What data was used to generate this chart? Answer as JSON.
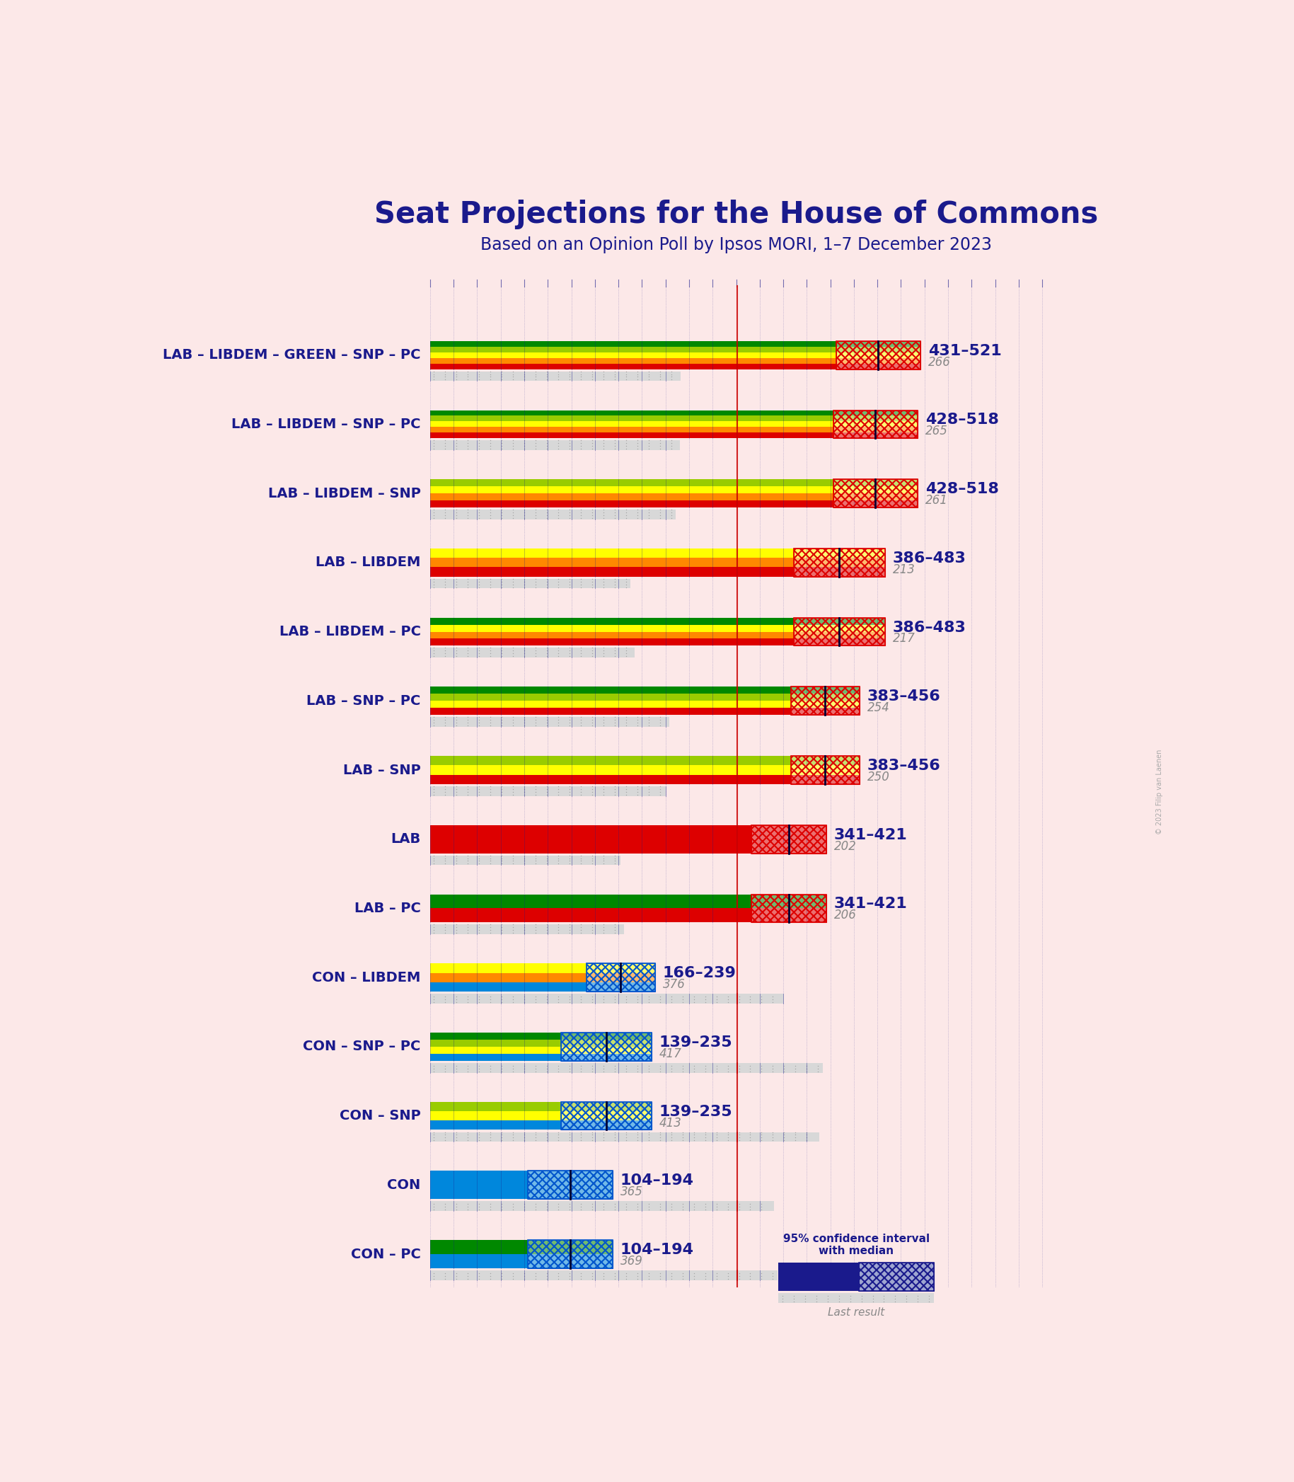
{
  "title": "Seat Projections for the House of Commons",
  "subtitle": "Based on an Opinion Poll by Ipsos MORI, 1–7 December 2023",
  "background_color": "#fce8e8",
  "title_color": "#1a1a8c",
  "subtitle_color": "#1a1a8c",
  "watermark": "© 2023 Filip van Laenen",
  "coalitions": [
    {
      "name": "LAB – LIBDEM – GREEN – SNP – PC",
      "range_label": "431–521",
      "low": 431,
      "high": 521,
      "median": 476,
      "last_result": 266,
      "party_type": "lab",
      "stripe_colors": [
        "#dd0000",
        "#FF8800",
        "#FFFF00",
        "#99CC00",
        "#008800"
      ]
    },
    {
      "name": "LAB – LIBDEM – SNP – PC",
      "range_label": "428–518",
      "low": 428,
      "high": 518,
      "median": 473,
      "last_result": 265,
      "party_type": "lab",
      "stripe_colors": [
        "#dd0000",
        "#FF8800",
        "#FFFF00",
        "#99CC00",
        "#008800"
      ]
    },
    {
      "name": "LAB – LIBDEM – SNP",
      "range_label": "428–518",
      "low": 428,
      "high": 518,
      "median": 473,
      "last_result": 261,
      "party_type": "lab",
      "stripe_colors": [
        "#dd0000",
        "#FF8800",
        "#FFFF00",
        "#99CC00"
      ]
    },
    {
      "name": "LAB – LIBDEM",
      "range_label": "386–483",
      "low": 386,
      "high": 483,
      "median": 434,
      "last_result": 213,
      "party_type": "lab",
      "stripe_colors": [
        "#dd0000",
        "#FF8800",
        "#FFFF00"
      ]
    },
    {
      "name": "LAB – LIBDEM – PC",
      "range_label": "386–483",
      "low": 386,
      "high": 483,
      "median": 434,
      "last_result": 217,
      "party_type": "lab",
      "stripe_colors": [
        "#dd0000",
        "#FF8800",
        "#FFFF00",
        "#008800"
      ]
    },
    {
      "name": "LAB – SNP – PC",
      "range_label": "383–456",
      "low": 383,
      "high": 456,
      "median": 419,
      "last_result": 254,
      "party_type": "lab",
      "stripe_colors": [
        "#dd0000",
        "#FFFF00",
        "#99CC00",
        "#008800"
      ]
    },
    {
      "name": "LAB – SNP",
      "range_label": "383–456",
      "low": 383,
      "high": 456,
      "median": 419,
      "last_result": 250,
      "party_type": "lab",
      "stripe_colors": [
        "#dd0000",
        "#FFFF00",
        "#99CC00"
      ]
    },
    {
      "name": "LAB",
      "range_label": "341–421",
      "low": 341,
      "high": 421,
      "median": 381,
      "last_result": 202,
      "party_type": "lab",
      "stripe_colors": [
        "#dd0000"
      ]
    },
    {
      "name": "LAB – PC",
      "range_label": "341–421",
      "low": 341,
      "high": 421,
      "median": 381,
      "last_result": 206,
      "party_type": "lab",
      "stripe_colors": [
        "#dd0000",
        "#008800"
      ]
    },
    {
      "name": "CON – LIBDEM",
      "range_label": "166–239",
      "low": 166,
      "high": 239,
      "median": 202,
      "last_result": 376,
      "party_type": "con",
      "stripe_colors": [
        "#0087dc",
        "#FF8800",
        "#FFFF00"
      ]
    },
    {
      "name": "CON – SNP – PC",
      "range_label": "139–235",
      "low": 139,
      "high": 235,
      "median": 187,
      "last_result": 417,
      "party_type": "con",
      "stripe_colors": [
        "#0087dc",
        "#FFFF00",
        "#99CC00",
        "#008800"
      ]
    },
    {
      "name": "CON – SNP",
      "range_label": "139–235",
      "low": 139,
      "high": 235,
      "median": 187,
      "last_result": 413,
      "party_type": "con",
      "stripe_colors": [
        "#0087dc",
        "#FFFF00",
        "#99CC00"
      ]
    },
    {
      "name": "CON",
      "range_label": "104–194",
      "low": 104,
      "high": 194,
      "median": 149,
      "last_result": 365,
      "party_type": "con",
      "stripe_colors": [
        "#0087dc"
      ]
    },
    {
      "name": "CON – PC",
      "range_label": "104–194",
      "low": 104,
      "high": 194,
      "median": 149,
      "last_result": 369,
      "party_type": "con",
      "stripe_colors": [
        "#0087dc",
        "#008800"
      ]
    }
  ],
  "seats_max": 650,
  "majority_seats": 326,
  "label_color": "#1a1a8c",
  "last_result_color": "#888888",
  "majority_line_color": "#cc0000",
  "grid_color": "#1a1a8c",
  "ci_bar_color": "#cccccc",
  "ci_bar_dot_color": "#888888",
  "legend_solid_color": "#1a1a8c",
  "legend_hatch_color": "#4466bb"
}
